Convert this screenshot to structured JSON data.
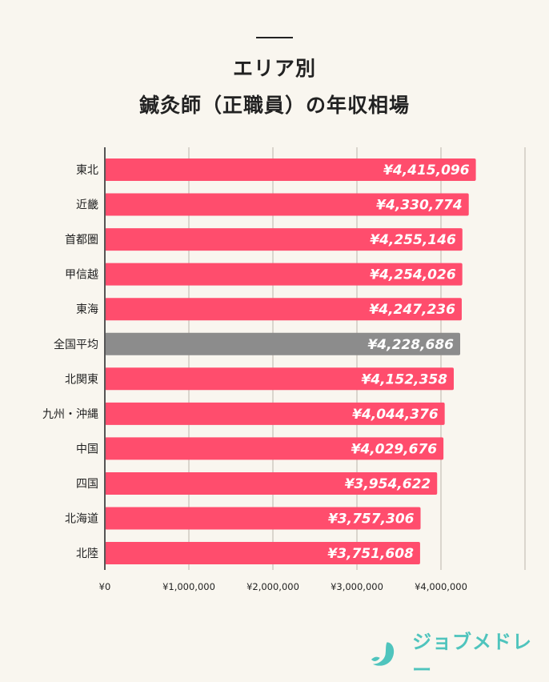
{
  "chart_data": {
    "type": "bar",
    "orientation": "horizontal",
    "title": [
      "エリア別",
      "鍼灸師（正職員）の年収相場"
    ],
    "categories": [
      "東北",
      "近畿",
      "首都圏",
      "甲信越",
      "東海",
      "全国平均",
      "北関東",
      "九州・沖縄",
      "中国",
      "四国",
      "北海道",
      "北陸"
    ],
    "values": [
      4415096,
      4330774,
      4255146,
      4254026,
      4247236,
      4228686,
      4152358,
      4044376,
      4029676,
      3954622,
      3757306,
      3751608
    ],
    "data_labels": [
      "¥4,415,096",
      "¥4,330,774",
      "¥4,255,146",
      "¥4,254,026",
      "¥4,247,236",
      "¥4,228,686",
      "¥4,152,358",
      "¥4,044,376",
      "¥4,029,676",
      "¥3,954,622",
      "¥3,757,306",
      "¥3,751,608"
    ],
    "highlight_category": "全国平均",
    "xlim": [
      0,
      5000000
    ],
    "x_ticks": [
      0,
      1000000,
      2000000,
      3000000,
      4000000
    ],
    "x_tick_labels": [
      "¥0",
      "¥1,000,000",
      "¥2,000,000",
      "¥3,000,000",
      "¥4,000,000"
    ],
    "grid": true,
    "colors": {
      "bar": "#ff4d6d",
      "highlight": "#8c8c8c",
      "background": "#f9f6ef",
      "brand": "#4fc4bd"
    }
  },
  "brand": {
    "name": "ジョブメドレー"
  }
}
